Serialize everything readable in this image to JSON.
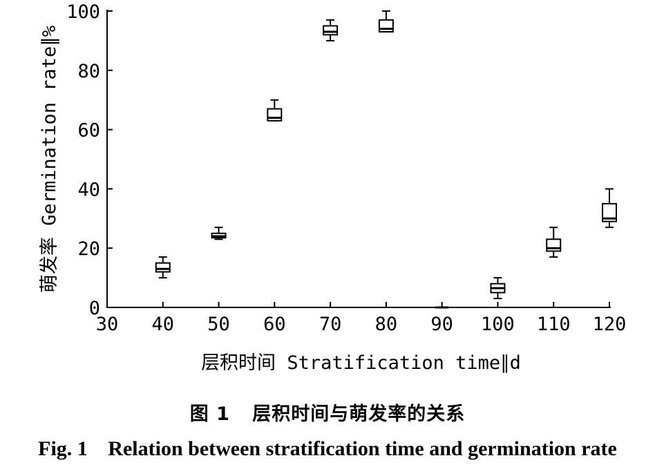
{
  "chart_data": {
    "type": "boxplot",
    "xlabel": "层积时间 Stratification time∥d",
    "ylabel": "萌发率 Germination rate∥%",
    "xlim": [
      30,
      120
    ],
    "ylim": [
      0,
      100
    ],
    "xticks": [
      30,
      40,
      50,
      60,
      70,
      80,
      90,
      100,
      110,
      120
    ],
    "yticks": [
      0,
      20,
      40,
      60,
      80,
      100
    ],
    "grid": false,
    "boxes": [
      {
        "x": 40,
        "min": 10,
        "q1": 12,
        "median": 13,
        "q3": 15,
        "max": 17
      },
      {
        "x": 50,
        "min": 23,
        "q1": 23.5,
        "median": 24,
        "q3": 25,
        "max": 27
      },
      {
        "x": 60,
        "min": 63,
        "q1": 63,
        "median": 64,
        "q3": 67,
        "max": 70
      },
      {
        "x": 70,
        "min": 90,
        "q1": 92,
        "median": 93,
        "q3": 95,
        "max": 97
      },
      {
        "x": 80,
        "min": 93,
        "q1": 93,
        "median": 94,
        "q3": 97,
        "max": 100
      },
      {
        "x": 90,
        "min": 0,
        "q1": 0,
        "median": 0,
        "q3": 0,
        "max": 0
      },
      {
        "x": 100,
        "min": 3,
        "q1": 5,
        "median": 6.5,
        "q3": 8,
        "max": 10
      },
      {
        "x": 110,
        "min": 17,
        "q1": 19,
        "median": 20,
        "q3": 23,
        "max": 27
      },
      {
        "x": 120,
        "min": 27,
        "q1": 29,
        "median": 30,
        "q3": 35,
        "max": 40
      }
    ]
  },
  "caption": {
    "cn_label": "图 1",
    "cn_text": "层积时间与萌发率的关系",
    "en_label": "Fig. 1",
    "en_text": "Relation between stratification time and germination rate"
  },
  "colors": {
    "ink": "#000000",
    "background": "#ffffff"
  }
}
